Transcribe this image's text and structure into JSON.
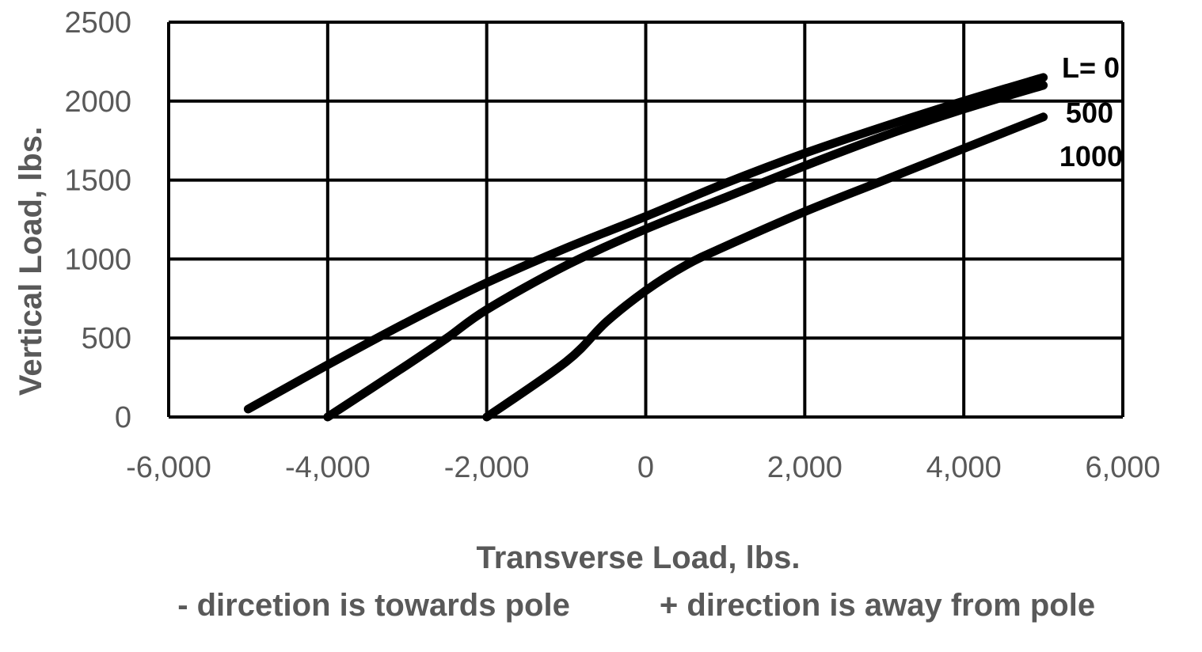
{
  "chart_data": {
    "type": "line",
    "title": "",
    "xlabel": "Transverse Load, lbs.",
    "ylabel": "Vertical Load, lbs.",
    "xlim": [
      -6000,
      6000
    ],
    "ylim": [
      0,
      2500
    ],
    "xticks": [
      -6000,
      -4000,
      -2000,
      0,
      2000,
      4000,
      6000
    ],
    "xtick_labels": [
      "-6,000",
      "-4,000",
      "-2,000",
      "0",
      "2,000",
      "4,000",
      "6,000"
    ],
    "yticks": [
      0,
      500,
      1000,
      1500,
      2000,
      2500
    ],
    "ytick_labels": [
      "0",
      "500",
      "1000",
      "1500",
      "2000",
      "2500"
    ],
    "grid": true,
    "legend": "none",
    "notes": [
      "- dircetion is towards pole",
      "+ direction is away from pole"
    ],
    "series": [
      {
        "name": "L=  0",
        "x": [
          -5000,
          -4000,
          -3000,
          -2000,
          -1000,
          0,
          1000,
          2000,
          3000,
          4000,
          5000
        ],
        "y": [
          50,
          330,
          600,
          850,
          1070,
          1270,
          1480,
          1670,
          1840,
          2000,
          2150
        ]
      },
      {
        "name": "500",
        "x": [
          -4000,
          -3000,
          -2500,
          -2000,
          -1000,
          0,
          1000,
          2000,
          3000,
          4000,
          5000
        ],
        "y": [
          0,
          330,
          500,
          680,
          960,
          1190,
          1390,
          1590,
          1780,
          1950,
          2100
        ]
      },
      {
        "name": "1000",
        "x": [
          -2000,
          -1000,
          -500,
          0,
          500,
          1000,
          2000,
          3000,
          4000,
          5000
        ],
        "y": [
          0,
          350,
          600,
          800,
          960,
          1080,
          1300,
          1500,
          1700,
          1900
        ]
      }
    ]
  }
}
